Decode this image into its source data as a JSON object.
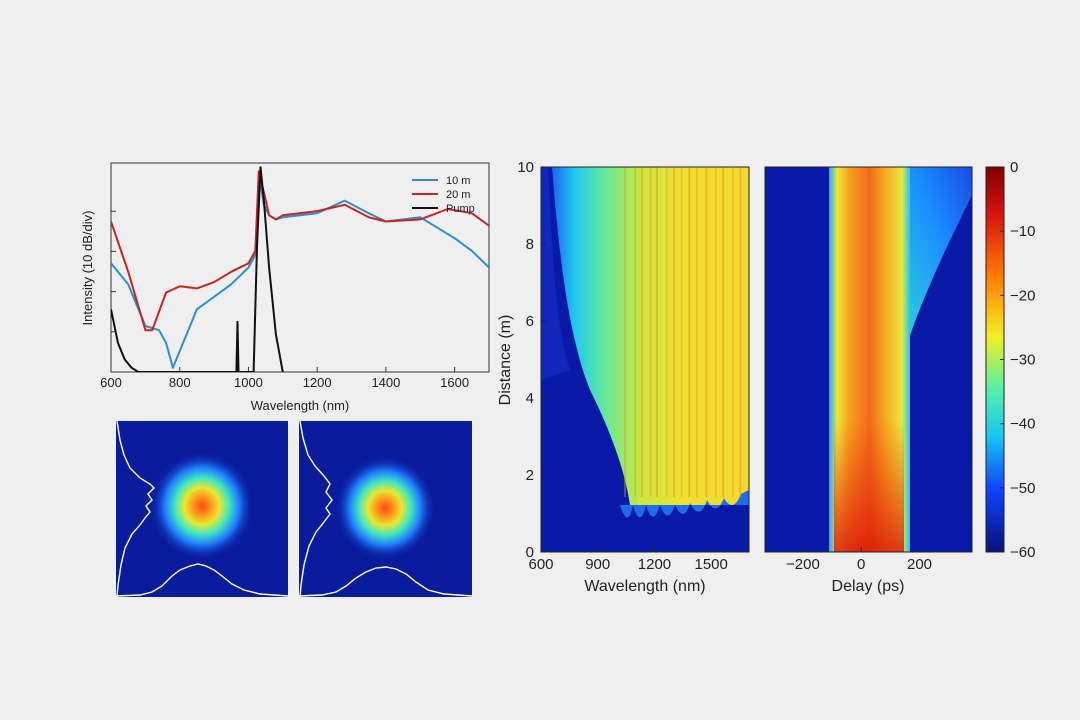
{
  "chart_data": [
    {
      "type": "line",
      "xlabel": "Wavelength (nm)",
      "ylabel": "Intensity (10 dB/div)",
      "xlim": [
        600,
        1700
      ],
      "ylim": [
        0,
        100
      ],
      "xticks": [
        "600",
        "800",
        "1000",
        "1200",
        "1400",
        "1600"
      ],
      "legend_position": "top-right",
      "series": [
        {
          "name": "10 m",
          "color": "#2b8fd0",
          "x": [
            600,
            650,
            700,
            740,
            760,
            780,
            800,
            850,
            900,
            950,
            1000,
            1020,
            1030,
            1045,
            1060,
            1080,
            1100,
            1200,
            1280,
            1350,
            1400,
            1500,
            1600,
            1650,
            1700
          ],
          "y": [
            52,
            42,
            22,
            20,
            14,
            2,
            10,
            30,
            36,
            42,
            50,
            56,
            95,
            80,
            75,
            73,
            74,
            76,
            82,
            76,
            72,
            74,
            64,
            58,
            50
          ]
        },
        {
          "name": "20 m",
          "color": "#cc2222",
          "x": [
            600,
            650,
            700,
            720,
            760,
            800,
            850,
            900,
            950,
            1000,
            1020,
            1030,
            1045,
            1060,
            1080,
            1100,
            1200,
            1280,
            1350,
            1400,
            1500,
            1580,
            1650,
            1700
          ],
          "y": [
            72,
            48,
            20,
            20,
            38,
            41,
            40,
            43,
            48,
            52,
            58,
            96,
            86,
            75,
            73,
            75,
            77,
            80,
            74,
            72,
            73,
            78,
            76,
            70
          ]
        },
        {
          "name": "Pump",
          "color": "#111111",
          "x": [
            600,
            620,
            640,
            660,
            680,
            965,
            968,
            971,
            1015,
            1025,
            1035,
            1045,
            1060,
            1080,
            1100
          ],
          "y": [
            30,
            14,
            6,
            2,
            0,
            0,
            24,
            0,
            0,
            60,
            98,
            82,
            50,
            18,
            0
          ]
        }
      ]
    },
    {
      "type": "heatmap",
      "xlabel": "Wavelength (nm)",
      "ylabel": "Distance (m)",
      "xlim": [
        600,
        1700
      ],
      "ylim": [
        0,
        10
      ],
      "xticks": [
        "600",
        "900",
        "1200",
        "1500"
      ],
      "yticks": [
        "0",
        "2",
        "4",
        "6",
        "8",
        "10"
      ]
    },
    {
      "type": "heatmap",
      "xlabel": "Delay (ps)",
      "xlim": [
        -330,
        380
      ],
      "ylim": [
        0,
        10
      ],
      "xticks": [
        "−200",
        "0",
        "200"
      ]
    },
    {
      "type": "colorbar",
      "ticks": [
        "0",
        "−10",
        "−20",
        "−30",
        "−40",
        "−50",
        "−60"
      ],
      "range": [
        -60,
        0
      ],
      "colormap": "jet"
    },
    {
      "type": "image",
      "panels": 2,
      "description_tags": [
        "beam-profile",
        "beam-profile"
      ]
    }
  ]
}
